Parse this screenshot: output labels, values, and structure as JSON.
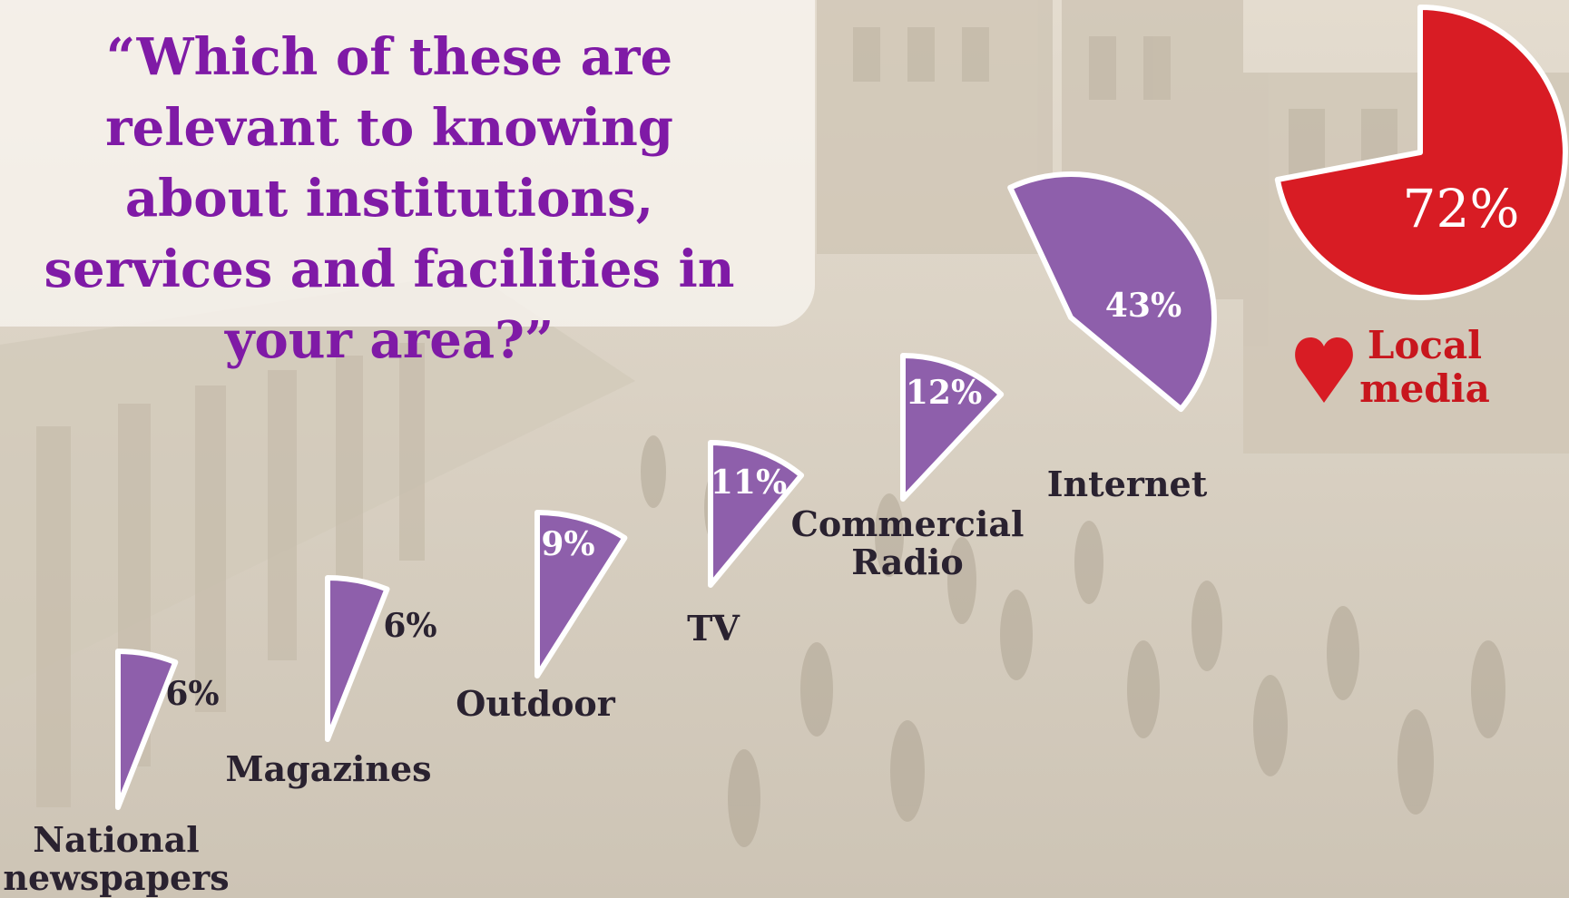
{
  "question": "“Which of these are relevant to knowing about institutions, services and facilities in your area?”",
  "colors": {
    "media": "#8e5fab",
    "local": "#d81c24",
    "title": "#7f1aa6",
    "outline": "#ffffff"
  },
  "icons": [
    "heart-icon"
  ],
  "chart_data": {
    "type": "pie",
    "series": [
      {
        "category": [
          "National",
          "newspapers"
        ],
        "value": 6,
        "value_label": "6%"
      },
      {
        "category": [
          "Magazines"
        ],
        "value": 6,
        "value_label": "6%"
      },
      {
        "category": [
          "Outdoor"
        ],
        "value": 9,
        "value_label": "9%"
      },
      {
        "category": [
          "TV"
        ],
        "value": 11,
        "value_label": "11%"
      },
      {
        "category": [
          "Commercial",
          "Radio"
        ],
        "value": 12,
        "value_label": "12%"
      },
      {
        "category": [
          "Internet"
        ],
        "value": 43,
        "value_label": "43%"
      }
    ],
    "highlight": {
      "category": [
        "Local",
        "media"
      ],
      "value": 72,
      "value_label": "72%"
    }
  }
}
